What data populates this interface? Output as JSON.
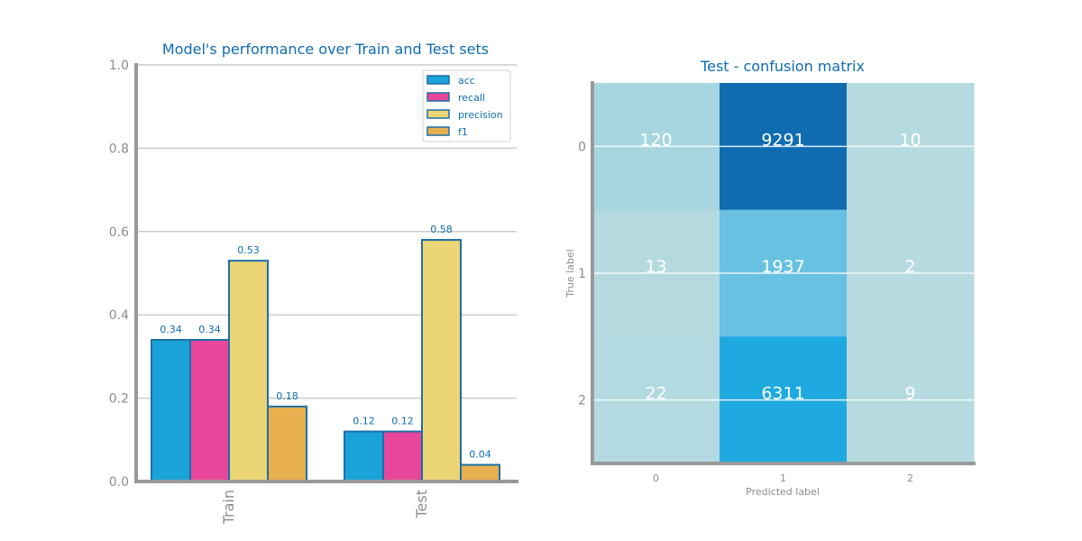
{
  "chart_data": [
    {
      "type": "bar",
      "title": "Model's performance over Train and Test sets",
      "categories": [
        "Train",
        "Test"
      ],
      "series": [
        {
          "name": "acc",
          "values": [
            0.34,
            0.12
          ],
          "color": "#1aa3d8"
        },
        {
          "name": "recall",
          "values": [
            0.34,
            0.12
          ],
          "color": "#e8469a"
        },
        {
          "name": "precision",
          "values": [
            0.53,
            0.58
          ],
          "color": "#ebd575"
        },
        {
          "name": "f1",
          "values": [
            0.18,
            0.04
          ],
          "color": "#e8af4f"
        }
      ],
      "data_labels": [
        [
          "0.34",
          "0.12"
        ],
        [
          "0.34",
          "0.12"
        ],
        [
          "0.53",
          "0.58"
        ],
        [
          "0.18",
          "0.04"
        ]
      ],
      "ylim": [
        0,
        1.0
      ],
      "yticks": [
        "0.0",
        "0.2",
        "0.4",
        "0.6",
        "0.8",
        "1.0"
      ],
      "grid": true,
      "legend": "top-right"
    },
    {
      "type": "heatmap",
      "title": "Test - confusion matrix",
      "xlabel": "Predicted label",
      "ylabel": "True label",
      "x_ticks": [
        "0",
        "1",
        "2"
      ],
      "y_ticks": [
        "0",
        "1",
        "2"
      ],
      "values": [
        [
          120,
          9291,
          10
        ],
        [
          13,
          1937,
          2
        ],
        [
          22,
          6311,
          9
        ]
      ],
      "cell_labels": [
        [
          "120",
          "9291",
          "10"
        ],
        [
          "13",
          "1937",
          "2"
        ],
        [
          "22",
          "6311",
          "9"
        ]
      ]
    }
  ],
  "colors": {
    "bar_edge": "#1b6fa8",
    "axis": "#999999",
    "grid": "#cccccc",
    "text_accent": "#0f6cb1",
    "heat_low": "#b9dce0",
    "heat_mid": "#1ea9e1",
    "heat_high": "#0f6cb1"
  }
}
